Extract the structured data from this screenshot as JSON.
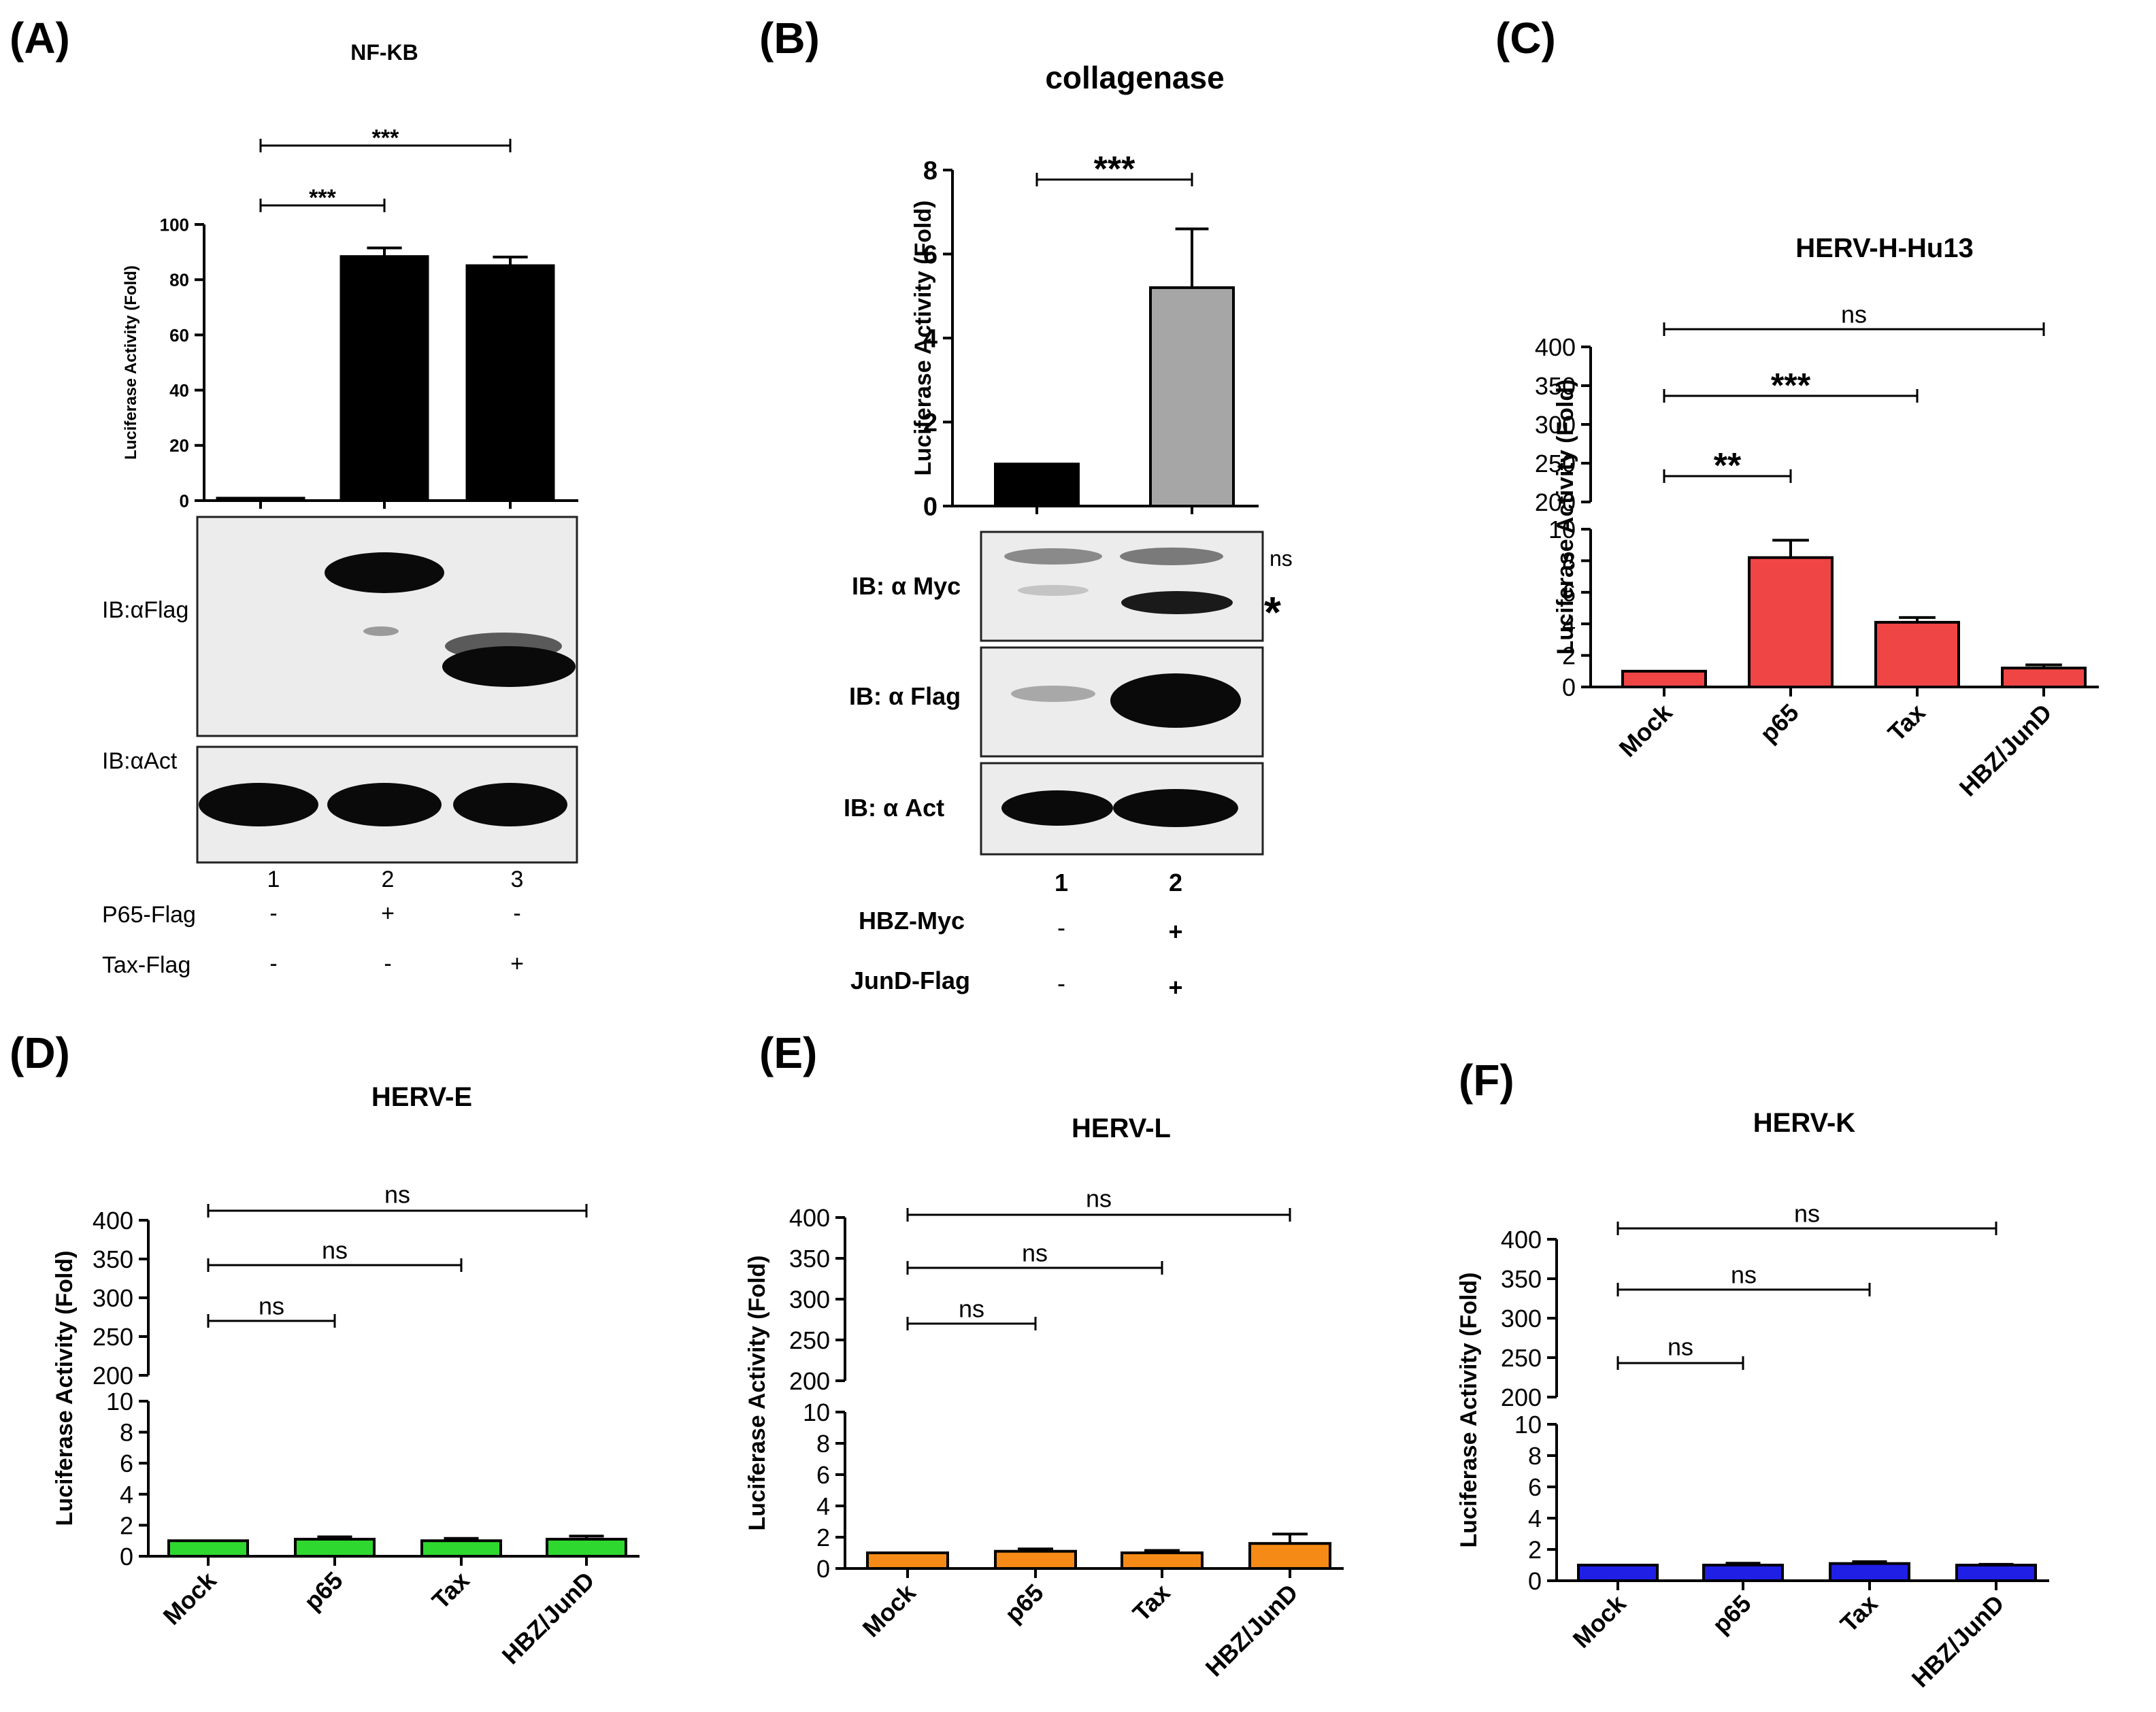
{
  "colors": {
    "black": "#000000",
    "gray": "#a6a6a6",
    "red": "#f04545",
    "green": "#2fd82f",
    "orange": "#f58a16",
    "blue": "#1f1fe6",
    "blot_bg": "#ececec",
    "band": "#0a0a0a"
  },
  "panel_labels": {
    "A": "(A)",
    "B": "(B)",
    "C": "(C)",
    "D": "(D)",
    "E": "(E)",
    "F": "(F)"
  },
  "chart_data": [
    {
      "id": "A",
      "type": "bar",
      "title": "NF-KB",
      "ylabel": "Luciferase Activity (Fold)",
      "ylim": [
        0,
        100
      ],
      "yticks": [
        0,
        20,
        40,
        60,
        80,
        100
      ],
      "categories": [
        "1",
        "2",
        "3"
      ],
      "values": [
        1,
        88.5,
        85.2
      ],
      "errors": [
        0,
        3,
        3
      ],
      "colors": [
        "#000000",
        "#000000",
        "#000000"
      ],
      "significance": [
        {
          "from": 0,
          "to": 1,
          "label": "***"
        },
        {
          "from": 0,
          "to": 2,
          "label": "***"
        }
      ]
    },
    {
      "id": "B",
      "type": "bar",
      "title": "collagenase",
      "ylabel": "Luciferase Activity (Fold)",
      "ylim": [
        0,
        8
      ],
      "yticks": [
        0,
        2,
        4,
        6,
        8
      ],
      "categories": [
        "1",
        "2"
      ],
      "values": [
        1,
        5.2
      ],
      "errors": [
        0,
        1.4
      ],
      "colors": [
        "#000000",
        "#a6a6a6"
      ],
      "significance": [
        {
          "from": 0,
          "to": 1,
          "label": "***"
        }
      ]
    },
    {
      "id": "C",
      "type": "bar",
      "title": "HERV-H-Hu13",
      "ylabel": "Luciferase Activity (Fold)",
      "broken_axis": true,
      "ylim_lower": [
        0,
        10
      ],
      "ylim_upper": [
        200,
        400
      ],
      "yticks_lower": [
        0,
        2,
        4,
        6,
        8,
        10
      ],
      "yticks_upper": [
        200,
        250,
        300,
        350,
        400
      ],
      "categories": [
        "Mock",
        "p65",
        "Tax",
        "HBZ/JunD"
      ],
      "values": [
        1.0,
        8.2,
        4.1,
        1.2
      ],
      "errors": [
        0,
        1.1,
        0.3,
        0.2
      ],
      "color": "#f04545",
      "significance": [
        {
          "from": 0,
          "to": 1,
          "label": "**"
        },
        {
          "from": 0,
          "to": 2,
          "label": "***"
        },
        {
          "from": 0,
          "to": 3,
          "label": "ns"
        }
      ]
    },
    {
      "id": "D",
      "type": "bar",
      "title": "HERV-E",
      "ylabel": "Luciferase Activity (Fold)",
      "broken_axis": true,
      "ylim_lower": [
        0,
        10
      ],
      "ylim_upper": [
        200,
        400
      ],
      "yticks_lower": [
        0,
        2,
        4,
        6,
        8,
        10
      ],
      "yticks_upper": [
        200,
        250,
        300,
        350,
        400
      ],
      "categories": [
        "Mock",
        "p65",
        "Tax",
        "HBZ/JunD"
      ],
      "values": [
        1.0,
        1.1,
        1.0,
        1.1
      ],
      "errors": [
        0,
        0.15,
        0.15,
        0.2
      ],
      "color": "#2fd82f",
      "significance": [
        {
          "from": 0,
          "to": 1,
          "label": "ns"
        },
        {
          "from": 0,
          "to": 2,
          "label": "ns"
        },
        {
          "from": 0,
          "to": 3,
          "label": "ns"
        }
      ]
    },
    {
      "id": "E",
      "type": "bar",
      "title": "HERV-L",
      "ylabel": "Luciferase Activity (Fold)",
      "broken_axis": true,
      "ylim_lower": [
        0,
        10
      ],
      "ylim_upper": [
        200,
        400
      ],
      "yticks_lower": [
        0,
        2,
        4,
        6,
        8,
        10
      ],
      "yticks_upper": [
        200,
        250,
        300,
        350,
        400
      ],
      "categories": [
        "Mock",
        "p65",
        "Tax",
        "HBZ/JunD"
      ],
      "values": [
        1.0,
        1.1,
        1.0,
        1.6
      ],
      "errors": [
        0,
        0.15,
        0.15,
        0.6
      ],
      "color": "#f58a16",
      "significance": [
        {
          "from": 0,
          "to": 1,
          "label": "ns"
        },
        {
          "from": 0,
          "to": 2,
          "label": "ns"
        },
        {
          "from": 0,
          "to": 3,
          "label": "ns"
        }
      ]
    },
    {
      "id": "F",
      "type": "bar",
      "title": "HERV-K",
      "ylabel": "Luciferase Activity (Fold)",
      "broken_axis": true,
      "ylim_lower": [
        0,
        10
      ],
      "ylim_upper": [
        200,
        400
      ],
      "yticks_lower": [
        0,
        2,
        4,
        6,
        8,
        10
      ],
      "yticks_upper": [
        200,
        250,
        300,
        350,
        400
      ],
      "categories": [
        "Mock",
        "p65",
        "Tax",
        "HBZ/JunD"
      ],
      "values": [
        1.0,
        1.0,
        1.1,
        1.0
      ],
      "errors": [
        0,
        0.12,
        0.12,
        0.05
      ],
      "color": "#1f1fe6",
      "significance": [
        {
          "from": 0,
          "to": 1,
          "label": "ns"
        },
        {
          "from": 0,
          "to": 2,
          "label": "ns"
        },
        {
          "from": 0,
          "to": 3,
          "label": "ns"
        }
      ]
    }
  ],
  "blots": {
    "A": {
      "rows": [
        "IB:αFlag",
        "IB:αAct"
      ],
      "lanes": [
        "1",
        "2",
        "3"
      ],
      "conditions": [
        {
          "label": "P65-Flag",
          "marks": [
            "-",
            "+",
            "-"
          ]
        },
        {
          "label": "Tax-Flag",
          "marks": [
            "-",
            "-",
            "+"
          ]
        }
      ]
    },
    "B": {
      "rows": [
        "IB: α Myc",
        "IB: α Flag",
        "IB: α Act"
      ],
      "annotations": {
        "ns": "ns",
        "star": "*"
      },
      "lanes": [
        "1",
        "2"
      ],
      "conditions": [
        {
          "label": "HBZ-Myc",
          "marks": [
            "-",
            "+"
          ]
        },
        {
          "label": "JunD-Flag",
          "marks": [
            "-",
            "+"
          ]
        }
      ]
    }
  }
}
